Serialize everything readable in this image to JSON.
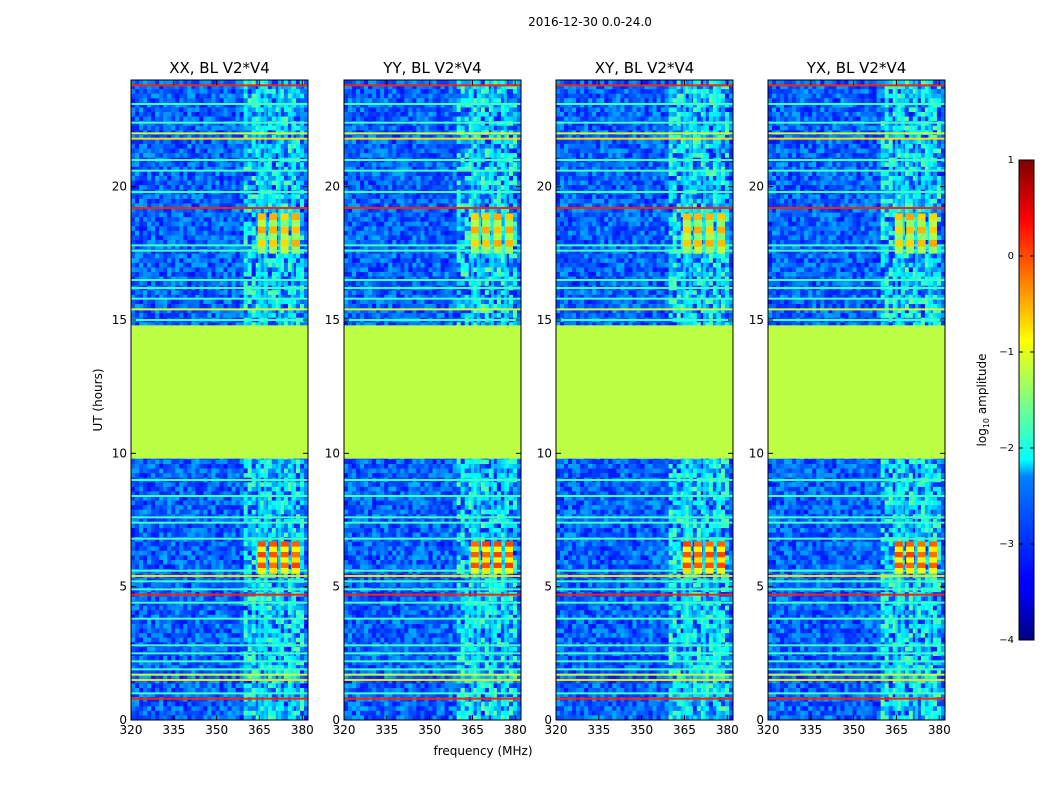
{
  "figure": {
    "suptitle": "2016-12-30 0.0-24.0",
    "shared_xlabel": "frequency (MHz)",
    "shared_ylabel": "UT (hours)",
    "colorbar": {
      "label_prefix": "log",
      "label_sub": "10",
      "label_suffix": " amplitude",
      "min": -4,
      "max": 1,
      "ticks": [
        -4,
        -3,
        -2,
        -1,
        0,
        1
      ],
      "tick_labels": [
        "−4",
        "−3",
        "−2",
        "−1",
        "0",
        "1"
      ],
      "colormap": "jet"
    }
  },
  "chart_data": [
    {
      "type": "heatmap",
      "title": "XX, BL V2*V4"
    },
    {
      "type": "heatmap",
      "title": "YY, BL V2*V4"
    },
    {
      "type": "heatmap",
      "title": "XY, BL V2*V4"
    },
    {
      "type": "heatmap",
      "title": "YX, BL V2*V4"
    }
  ],
  "axes_common": {
    "xlim": [
      320,
      382
    ],
    "ylim": [
      0,
      24
    ],
    "xticks": [
      320,
      335,
      350,
      365,
      380
    ],
    "xtick_labels": [
      "320",
      "335",
      "350",
      "365",
      "380"
    ],
    "yticks": [
      0,
      5,
      10,
      15,
      20
    ],
    "ytick_labels": [
      "0",
      "5",
      "10",
      "15",
      "20"
    ],
    "background_level": -3,
    "flagged_block": {
      "t_start": 9.8,
      "t_end": 14.8,
      "value": -1.2
    },
    "rfi_band": {
      "f_start": 359,
      "f_end": 380,
      "level": -2
    },
    "burst_windows": [
      {
        "t_start": 5.5,
        "t_end": 6.7,
        "f_start": 364,
        "f_end": 380,
        "peak": 0
      },
      {
        "t_start": 17.5,
        "t_end": 19.0,
        "f_start": 364,
        "f_end": 380,
        "peak": -0.5
      }
    ],
    "rfi_lines_strong": [
      0.8,
      1.5,
      1.7,
      4.7,
      5.4,
      15.4,
      19.2,
      21.8,
      22.0,
      23.8
    ],
    "rfi_lines_medium": [
      1.0,
      1.9,
      2.2,
      2.5,
      2.8,
      3.8,
      4.4,
      4.9,
      5.2,
      5.6,
      6.8,
      7.4,
      7.6,
      8.4,
      9.0,
      15.0,
      15.8,
      16.2,
      16.5,
      17.6,
      17.8,
      19.8,
      20.6,
      21.0,
      22.4,
      23.1
    ]
  }
}
